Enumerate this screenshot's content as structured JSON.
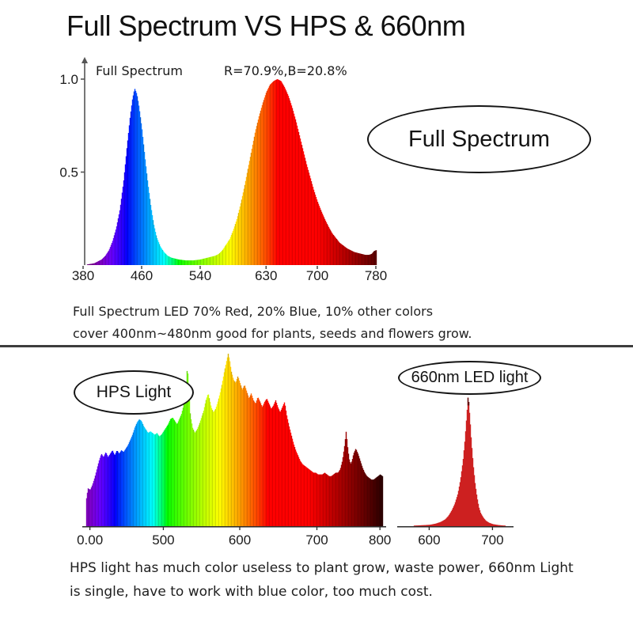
{
  "title": "Full Spectrum VS HPS & 660nm",
  "top_section": {
    "callout": "Full Spectrum",
    "caption_lines": [
      "Full Spectrum LED 70% Red, 20% Blue, 10% other colors",
      "cover 400nm~480nm good for plants, seeds and flowers grow."
    ]
  },
  "bottom_section": {
    "hps_callout": "HPS Light",
    "led_callout": "660nm LED light",
    "caption_lines": [
      "HPS light has much color useless to plant grow, waste power, 660nm Light",
      "is single, have to work with blue color, too much cost."
    ]
  },
  "chart_data": [
    {
      "id": "full-spectrum",
      "type": "area",
      "label": "Full Spectrum",
      "annotation": "R=70.9%,B=20.8%",
      "x_unit": "nm",
      "x_domain": [
        380,
        780
      ],
      "ylim": [
        0,
        1.05
      ],
      "y_axis": true,
      "grid": false,
      "y_ticks": [
        {
          "label": "1.0",
          "value": 1.0
        },
        {
          "label": "0.5",
          "value": 0.5
        }
      ],
      "x_ticks": [
        {
          "label": "380",
          "nm": 380
        },
        {
          "label": "460",
          "nm": 460
        },
        {
          "label": "540",
          "nm": 540
        },
        {
          "label": "630",
          "nm": 630
        },
        {
          "label": "700",
          "nm": 700
        },
        {
          "label": "780",
          "nm": 780
        }
      ],
      "x": [
        380,
        388,
        395,
        400,
        405,
        410,
        415,
        420,
        425,
        430,
        435,
        440,
        444,
        447,
        450,
        453,
        456,
        460,
        464,
        468,
        472,
        476,
        480,
        485,
        490,
        495,
        500,
        510,
        520,
        530,
        540,
        550,
        555,
        560,
        565,
        570,
        575,
        580,
        585,
        590,
        595,
        600,
        605,
        610,
        615,
        620,
        625,
        630,
        635,
        640,
        645,
        650,
        655,
        660,
        665,
        670,
        675,
        680,
        685,
        690,
        695,
        700,
        705,
        710,
        715,
        720,
        725,
        730,
        735,
        740,
        745,
        750,
        755,
        760,
        765,
        770,
        774,
        777,
        780
      ],
      "y": [
        0,
        0.005,
        0.01,
        0.02,
        0.03,
        0.05,
        0.08,
        0.13,
        0.2,
        0.3,
        0.45,
        0.65,
        0.8,
        0.89,
        0.95,
        0.92,
        0.85,
        0.73,
        0.58,
        0.44,
        0.32,
        0.22,
        0.15,
        0.1,
        0.07,
        0.05,
        0.04,
        0.03,
        0.025,
        0.025,
        0.03,
        0.04,
        0.045,
        0.05,
        0.06,
        0.08,
        0.11,
        0.14,
        0.19,
        0.25,
        0.33,
        0.42,
        0.52,
        0.62,
        0.72,
        0.8,
        0.87,
        0.93,
        0.97,
        0.99,
        1.0,
        0.99,
        0.955,
        0.91,
        0.85,
        0.78,
        0.7,
        0.62,
        0.54,
        0.47,
        0.4,
        0.34,
        0.29,
        0.245,
        0.205,
        0.17,
        0.145,
        0.12,
        0.105,
        0.09,
        0.08,
        0.07,
        0.065,
        0.06,
        0.055,
        0.055,
        0.06,
        0.075,
        0.08
      ]
    },
    {
      "id": "hps",
      "type": "area",
      "label": "HPS Light",
      "x_unit": "nm",
      "x_domain": [
        400,
        800
      ],
      "ylim": [
        0,
        1.05
      ],
      "grid": false,
      "x_ticks": [
        {
          "label": "0.00",
          "nm": 406
        },
        {
          "label": "500",
          "nm": 505
        },
        {
          "label": "600",
          "nm": 608
        },
        {
          "label": "700",
          "nm": 712
        },
        {
          "label": "800",
          "nm": 797
        }
      ],
      "x": [
        400,
        401,
        403,
        406,
        409,
        412,
        415,
        418,
        421,
        424,
        427,
        430,
        433,
        436,
        439,
        442,
        445,
        448,
        451,
        454,
        457,
        460,
        463,
        466,
        469,
        472,
        475,
        478,
        481,
        484,
        487,
        490,
        493,
        496,
        499,
        502,
        505,
        508,
        511,
        514,
        517,
        520,
        523,
        526,
        529,
        532,
        535,
        537,
        539,
        541,
        544,
        547,
        550,
        553,
        556,
        559,
        562,
        565,
        567,
        569,
        572,
        575,
        578,
        581,
        584,
        587,
        590,
        592,
        594,
        596,
        599,
        602,
        605,
        608,
        611,
        614,
        617,
        620,
        623,
        626,
        629,
        632,
        635,
        638,
        641,
        644,
        647,
        650,
        653,
        656,
        659,
        662,
        665,
        668,
        671,
        674,
        677,
        680,
        683,
        686,
        689,
        692,
        695,
        698,
        701,
        704,
        707,
        710,
        713,
        716,
        719,
        722,
        725,
        728,
        731,
        734,
        737,
        740,
        743,
        746,
        749,
        751,
        753,
        755,
        757,
        759,
        761,
        764,
        767,
        770,
        773,
        776,
        779,
        782,
        785,
        788,
        791,
        794,
        797,
        800
      ],
      "y": [
        0,
        0.16,
        0.22,
        0.21,
        0.24,
        0.28,
        0.33,
        0.38,
        0.42,
        0.4,
        0.43,
        0.4,
        0.42,
        0.44,
        0.41,
        0.44,
        0.42,
        0.44,
        0.43,
        0.45,
        0.47,
        0.5,
        0.53,
        0.57,
        0.6,
        0.62,
        0.61,
        0.58,
        0.56,
        0.54,
        0.55,
        0.54,
        0.53,
        0.54,
        0.52,
        0.53,
        0.55,
        0.57,
        0.59,
        0.62,
        0.63,
        0.61,
        0.59,
        0.62,
        0.65,
        0.7,
        0.8,
        0.93,
        0.78,
        0.64,
        0.57,
        0.54,
        0.56,
        0.59,
        0.63,
        0.67,
        0.73,
        0.77,
        0.73,
        0.69,
        0.66,
        0.68,
        0.72,
        0.77,
        0.83,
        0.9,
        0.96,
        1.0,
        0.96,
        0.9,
        0.85,
        0.83,
        0.87,
        0.83,
        0.79,
        0.82,
        0.78,
        0.74,
        0.77,
        0.73,
        0.71,
        0.75,
        0.72,
        0.69,
        0.72,
        0.74,
        0.71,
        0.68,
        0.7,
        0.73,
        0.69,
        0.66,
        0.69,
        0.72,
        0.64,
        0.58,
        0.53,
        0.48,
        0.44,
        0.41,
        0.38,
        0.36,
        0.35,
        0.34,
        0.33,
        0.32,
        0.31,
        0.31,
        0.3,
        0.3,
        0.3,
        0.31,
        0.3,
        0.29,
        0.29,
        0.3,
        0.31,
        0.31,
        0.33,
        0.38,
        0.47,
        0.55,
        0.46,
        0.39,
        0.36,
        0.38,
        0.42,
        0.45,
        0.42,
        0.38,
        0.34,
        0.31,
        0.29,
        0.28,
        0.27,
        0.27,
        0.28,
        0.29,
        0.3,
        0.29
      ]
    },
    {
      "id": "led660",
      "type": "area",
      "label": "660nm LED light",
      "x_unit": "nm",
      "x_domain": [
        557,
        728
      ],
      "ylim": [
        0,
        1.05
      ],
      "grid": false,
      "color": "#cd2121",
      "tip_color": "#5a1010",
      "x_ticks": [
        {
          "label": "600",
          "nm": 600
        },
        {
          "label": "700",
          "nm": 700
        }
      ],
      "x": [
        557,
        580,
        600,
        610,
        618,
        625,
        630,
        635,
        640,
        645,
        649,
        653,
        656,
        658,
        660,
        661,
        662,
        664,
        666,
        669,
        672,
        675,
        678,
        681,
        685,
        689,
        694,
        700,
        708,
        716,
        728
      ],
      "y": [
        0,
        0.004,
        0.008,
        0.015,
        0.025,
        0.04,
        0.06,
        0.09,
        0.13,
        0.19,
        0.27,
        0.38,
        0.5,
        0.6,
        0.7,
        0.76,
        0.72,
        0.62,
        0.5,
        0.36,
        0.25,
        0.17,
        0.11,
        0.075,
        0.05,
        0.032,
        0.02,
        0.012,
        0.007,
        0.004,
        0.002
      ]
    }
  ]
}
